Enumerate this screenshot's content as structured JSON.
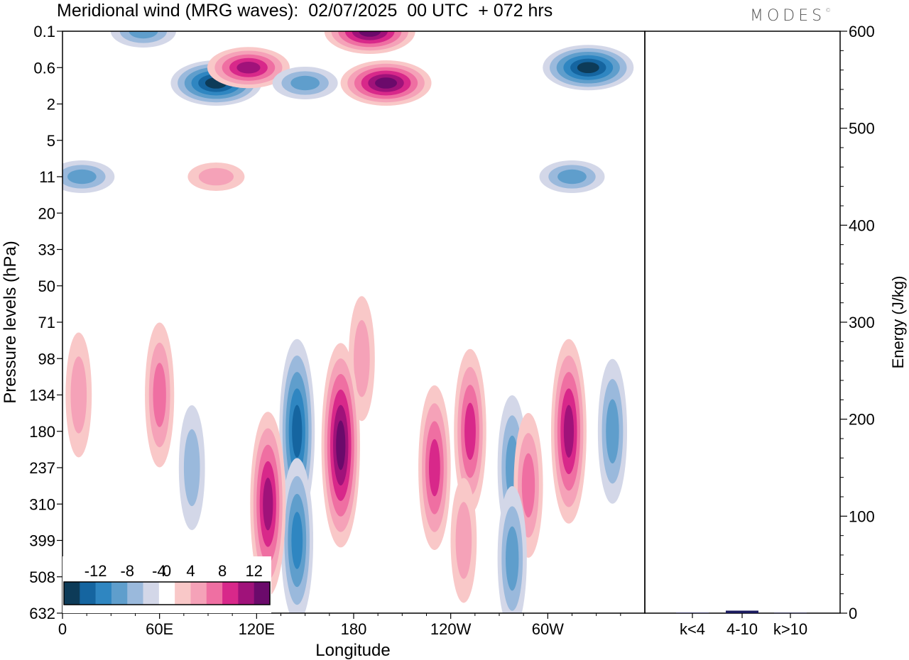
{
  "header": {
    "title": "Meridional wind (MRG waves):  02/07/2025  00 UTC  + 072 hrs",
    "brand": "MODES",
    "brand_mark": "©"
  },
  "chart_data": [
    {
      "type": "heatmap",
      "title": "Meridional wind (MRG waves):  02/07/2025  00 UTC  + 072 hrs",
      "xlabel": "Longitude",
      "ylabel": "Pressure levels (hPa)",
      "x_ticks": [
        "0",
        "60E",
        "120E",
        "180",
        "120W",
        "60W"
      ],
      "y_ticks": [
        "0.1",
        "0.6",
        "2",
        "5",
        "11",
        "20",
        "33",
        "50",
        "71",
        "98",
        "134",
        "180",
        "237",
        "310",
        "399",
        "508",
        "632"
      ],
      "colorbar": {
        "tick_labels": [
          "-12",
          "-8",
          "-4",
          "0",
          "4",
          "8",
          "12"
        ],
        "levels": [
          -14,
          -12,
          -10,
          -8,
          -6,
          -4,
          -2,
          2,
          4,
          6,
          8,
          10,
          12,
          14
        ],
        "colors": [
          "#0d3b58",
          "#1565a0",
          "#2f86c1",
          "#5f9ecc",
          "#9ab9dc",
          "#d3d7e8",
          "#ffffff",
          "#f9c8c8",
          "#f5a2b8",
          "#ef6fa2",
          "#d8288a",
          "#a0127a",
          "#6b0a6b"
        ]
      },
      "features": [
        {
          "sign": "negative",
          "lon": 50,
          "level": "0.1",
          "peak": -6
        },
        {
          "sign": "negative",
          "lon": 95,
          "level": "1",
          "peak": -13
        },
        {
          "sign": "positive",
          "lon": 115,
          "level": "0.6",
          "peak": 11
        },
        {
          "sign": "negative",
          "lon": 150,
          "level": "1",
          "peak": -7
        },
        {
          "sign": "positive",
          "lon": 190,
          "level": "0.1",
          "peak": 13
        },
        {
          "sign": "positive",
          "lon": 200,
          "level": "1",
          "peak": 12
        },
        {
          "sign": "negative",
          "lon": 325,
          "level": "0.6",
          "peak": -13
        },
        {
          "sign": "negative",
          "lon": 315,
          "level": "11",
          "peak": -6
        },
        {
          "sign": "negative",
          "lon": 12,
          "level": "11",
          "peak": -6
        },
        {
          "sign": "positive",
          "lon": 95,
          "level": "11",
          "peak": 4
        },
        {
          "sign": "positive",
          "lon": 185,
          "level": "98",
          "peak": 5
        },
        {
          "sign": "negative",
          "lon": 145,
          "level": "180",
          "peak": -10
        },
        {
          "sign": "negative",
          "lon": 145,
          "level": "399",
          "peak": -8
        },
        {
          "sign": "positive",
          "lon": 172,
          "level": "200",
          "peak": 13
        },
        {
          "sign": "positive",
          "lon": 127,
          "level": "310",
          "peak": 10
        },
        {
          "sign": "negative",
          "lon": 80,
          "level": "237",
          "peak": -5
        },
        {
          "sign": "positive",
          "lon": 60,
          "level": "134",
          "peak": 6
        },
        {
          "sign": "positive",
          "lon": 10,
          "level": "134",
          "peak": 5
        },
        {
          "sign": "positive",
          "lon": 230,
          "level": "237",
          "peak": 9
        },
        {
          "sign": "positive",
          "lon": 252,
          "level": "180",
          "peak": 8
        },
        {
          "sign": "positive",
          "lon": 313,
          "level": "180",
          "peak": 11
        },
        {
          "sign": "negative",
          "lon": 340,
          "level": "180",
          "peak": -6
        },
        {
          "sign": "negative",
          "lon": 278,
          "level": "237",
          "peak": -6
        },
        {
          "sign": "positive",
          "lon": 288,
          "level": "270",
          "peak": 6
        },
        {
          "sign": "negative",
          "lon": 278,
          "level": "450",
          "peak": -6
        },
        {
          "sign": "positive",
          "lon": 248,
          "level": "399",
          "peak": 5
        }
      ]
    },
    {
      "type": "bar",
      "ylabel": "Energy (J/kg)",
      "categories": [
        "k<4",
        "4-10",
        "k>10"
      ],
      "values": [
        0.4,
        2.6,
        0.3
      ],
      "y_ticks": [
        "0",
        "100",
        "200",
        "300",
        "400",
        "500",
        "600"
      ],
      "ylim": [
        0,
        600
      ],
      "bar_color": "#1a1a5e"
    }
  ]
}
